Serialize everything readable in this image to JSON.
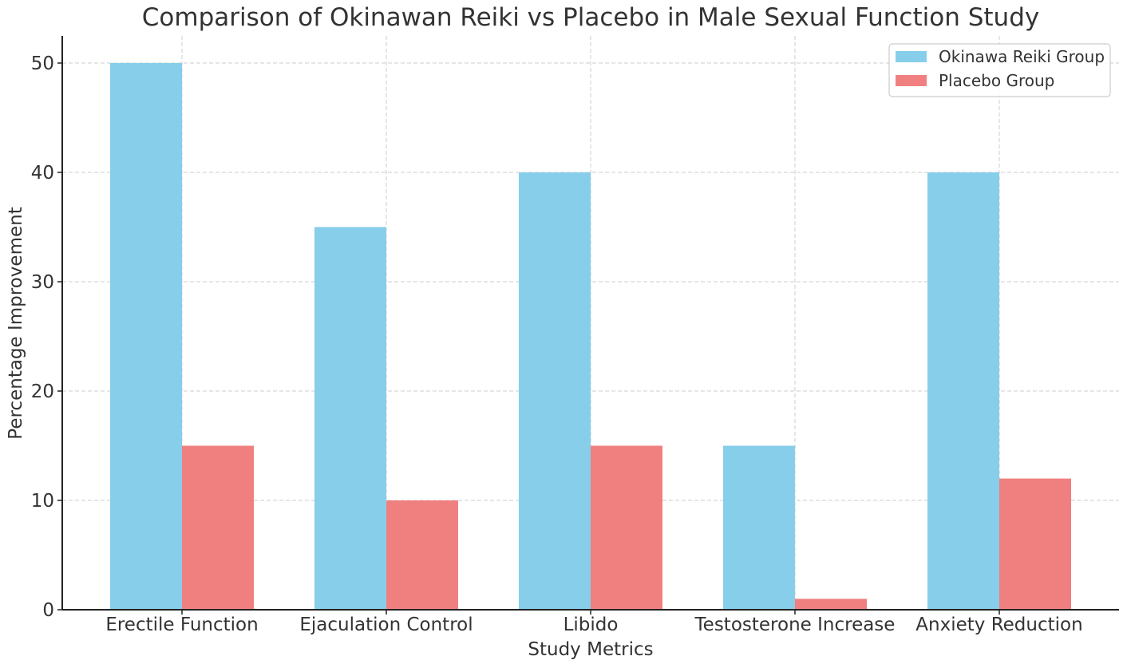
{
  "chart_data": {
    "type": "bar",
    "title": "Comparison of Okinawan Reiki vs Placebo in Male Sexual Function Study",
    "xlabel": "Study Metrics",
    "ylabel": "Percentage Improvement",
    "categories": [
      "Erectile Function",
      "Ejaculation Control",
      "Libido",
      "Testosterone Increase",
      "Anxiety Reduction"
    ],
    "series": [
      {
        "name": "Okinawa Reiki Group",
        "values": [
          50,
          35,
          40,
          15,
          40
        ],
        "color": "#87CEEB"
      },
      {
        "name": "Placebo Group",
        "values": [
          15,
          10,
          15,
          1,
          12
        ],
        "color": "#F08080"
      }
    ],
    "ylim": [
      0,
      52.5
    ],
    "yticks": [
      0,
      10,
      20,
      30,
      40,
      50
    ],
    "grid": true,
    "legend": "top-right"
  }
}
